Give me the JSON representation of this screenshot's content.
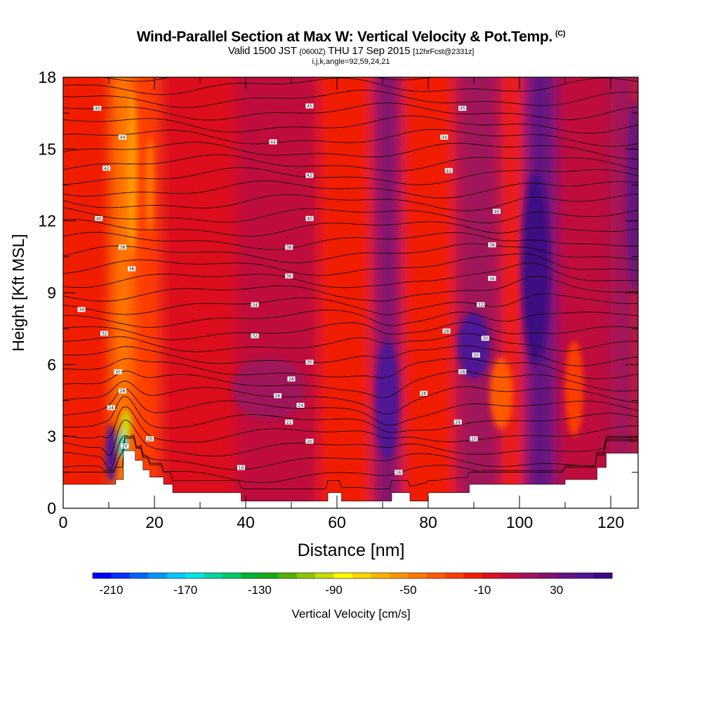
{
  "title": {
    "main": "Wind-Parallel Section at Max W: Vertical Velocity & Pot.Temp.",
    "copyright": "(C)",
    "valid_prefix": "Valid 1500 JST",
    "valid_utc": "(0600Z)",
    "valid_date": "THU 17 Sep 2015",
    "forecast": "[12hrFcst@2331z]",
    "indices": "i,j,k,angle=92,59,24,21"
  },
  "chart_data": {
    "type": "heatmap",
    "xlabel": "Distance [nm]",
    "ylabel": "Height [Kft MSL]",
    "xlim": [
      0,
      126
    ],
    "ylim": [
      0,
      18
    ],
    "x_ticks": [
      0,
      20,
      40,
      60,
      80,
      100,
      120
    ],
    "y_ticks": [
      0,
      3,
      6,
      9,
      12,
      15,
      18
    ],
    "colorbar": {
      "label": "Vertical Velocity [cm/s]",
      "min": -220,
      "max": 60,
      "step": 10,
      "tick_labels": [
        "-210",
        "-170",
        "-130",
        "-90",
        "-50",
        "-10",
        "30"
      ],
      "tick_values": [
        -210,
        -170,
        -130,
        -90,
        -50,
        -10,
        30
      ],
      "colors": [
        "#0000ff",
        "#0032ff",
        "#0064ff",
        "#0096ff",
        "#00c8ff",
        "#00e6e6",
        "#00d7a0",
        "#00c864",
        "#00b432",
        "#14aa14",
        "#50b400",
        "#8cc800",
        "#c8dc00",
        "#ffff00",
        "#ffd700",
        "#ffb400",
        "#ff9600",
        "#ff7800",
        "#ff5a00",
        "#ff3c00",
        "#f01e00",
        "#dc0f1e",
        "#be0f3c",
        "#a0145a",
        "#82146e",
        "#641482",
        "#501496",
        "#3c0a82"
      ]
    },
    "velocity_bands": [
      {
        "x": 0,
        "w": 11,
        "v": -15
      },
      {
        "x": 11,
        "w": 4,
        "v": -50
      },
      {
        "x": 15,
        "w": 6,
        "v": -25
      },
      {
        "x": 21,
        "w": 17,
        "v": -10
      },
      {
        "x": 38,
        "w": 18,
        "v": 0
      },
      {
        "x": 56,
        "w": 12,
        "v": -12
      },
      {
        "x": 68,
        "w": 6,
        "v": 20
      },
      {
        "x": 74,
        "w": 12,
        "v": -15
      },
      {
        "x": 86,
        "w": 10,
        "v": 15
      },
      {
        "x": 96,
        "w": 5,
        "v": -20
      },
      {
        "x": 101,
        "w": 7,
        "v": 35
      },
      {
        "x": 108,
        "w": 12,
        "v": 0
      },
      {
        "x": 120,
        "w": 6,
        "v": 10
      }
    ],
    "velocity_features": [
      {
        "x": 10.5,
        "y": 2.3,
        "rx": 1.3,
        "ry": 1.2,
        "v": 45
      },
      {
        "x": 13.2,
        "y": 2.8,
        "rx": 0.9,
        "ry": 0.7,
        "v": -170
      },
      {
        "x": 13.8,
        "y": 3.5,
        "rx": 1.0,
        "ry": 0.6,
        "v": -100
      },
      {
        "x": 15.0,
        "y": 14.0,
        "rx": 1.2,
        "ry": 3.5,
        "v": -60
      },
      {
        "x": 19.0,
        "y": 13.5,
        "rx": 0.9,
        "ry": 2.0,
        "v": -45
      },
      {
        "x": 45.0,
        "y": 5.0,
        "rx": 8.0,
        "ry": 1.3,
        "v": 10
      },
      {
        "x": 71.0,
        "y": 4.5,
        "rx": 2.5,
        "ry": 2.5,
        "v": 40
      },
      {
        "x": 90.0,
        "y": 6.8,
        "rx": 3.5,
        "ry": 1.4,
        "v": 40
      },
      {
        "x": 103.5,
        "y": 10.0,
        "rx": 3.0,
        "ry": 4.0,
        "v": 50
      },
      {
        "x": 96.0,
        "y": 4.8,
        "rx": 2.5,
        "ry": 1.5,
        "v": -40
      },
      {
        "x": 112.0,
        "y": 5.0,
        "rx": 2.0,
        "ry": 2.0,
        "v": -30
      },
      {
        "x": 125.0,
        "y": 13.0,
        "rx": 1.5,
        "ry": 4.0,
        "v": 30
      }
    ],
    "terrain": [
      [
        0,
        1.0
      ],
      [
        11.5,
        1.0
      ],
      [
        11.5,
        1.2
      ],
      [
        13.2,
        1.2
      ],
      [
        13.2,
        2.4
      ],
      [
        15.8,
        2.4
      ],
      [
        15.8,
        2.0
      ],
      [
        17.5,
        2.0
      ],
      [
        17.5,
        1.6
      ],
      [
        19,
        1.6
      ],
      [
        19,
        1.3
      ],
      [
        22,
        1.3
      ],
      [
        22,
        1.0
      ],
      [
        24,
        1.0
      ],
      [
        24,
        0.65
      ],
      [
        39,
        0.65
      ],
      [
        39,
        0.3
      ],
      [
        58,
        0.3
      ],
      [
        58,
        0.65
      ],
      [
        61,
        0.65
      ],
      [
        61,
        0.3
      ],
      [
        72,
        0.3
      ],
      [
        72,
        0.65
      ],
      [
        76,
        0.65
      ],
      [
        76,
        0.3
      ],
      [
        80,
        0.3
      ],
      [
        80,
        0.65
      ],
      [
        89,
        0.65
      ],
      [
        89,
        1.0
      ],
      [
        110,
        1.0
      ],
      [
        110,
        1.2
      ],
      [
        117,
        1.2
      ],
      [
        117,
        1.7
      ],
      [
        119,
        1.7
      ],
      [
        119,
        2.3
      ],
      [
        126,
        2.3
      ]
    ],
    "theta_contours": {
      "count": 33,
      "base": 290,
      "step": 1
    },
    "theta_labels": [
      {
        "x": 7.5,
        "y": 16.7,
        "t": "45"
      },
      {
        "x": 54,
        "y": 16.8,
        "t": "45"
      },
      {
        "x": 87.5,
        "y": 16.7,
        "t": "45"
      },
      {
        "x": 13,
        "y": 15.5,
        "t": "44"
      },
      {
        "x": 46,
        "y": 15.3,
        "t": "44"
      },
      {
        "x": 83.5,
        "y": 15.5,
        "t": "44"
      },
      {
        "x": 9.5,
        "y": 14.2,
        "t": "42"
      },
      {
        "x": 54,
        "y": 13.9,
        "t": "42"
      },
      {
        "x": 84.5,
        "y": 14.1,
        "t": "42"
      },
      {
        "x": 7.8,
        "y": 12.1,
        "t": "40"
      },
      {
        "x": 54,
        "y": 12.1,
        "t": "40"
      },
      {
        "x": 95,
        "y": 12.4,
        "t": "40"
      },
      {
        "x": 13,
        "y": 10.9,
        "t": "38"
      },
      {
        "x": 49.5,
        "y": 10.9,
        "t": "38"
      },
      {
        "x": 94,
        "y": 11.0,
        "t": "38"
      },
      {
        "x": 15,
        "y": 10.0,
        "t": "36"
      },
      {
        "x": 49.5,
        "y": 9.7,
        "t": "36"
      },
      {
        "x": 94,
        "y": 9.6,
        "t": "36"
      },
      {
        "x": 4,
        "y": 8.3,
        "t": "34"
      },
      {
        "x": 42,
        "y": 8.5,
        "t": "34"
      },
      {
        "x": 91.5,
        "y": 8.5,
        "t": "32"
      },
      {
        "x": 9,
        "y": 7.3,
        "t": "32"
      },
      {
        "x": 42,
        "y": 7.2,
        "t": "32"
      },
      {
        "x": 84,
        "y": 7.4,
        "t": "28"
      },
      {
        "x": 92.5,
        "y": 7.1,
        "t": "30"
      },
      {
        "x": 90.5,
        "y": 6.4,
        "t": "30"
      },
      {
        "x": 54,
        "y": 6.1,
        "t": "30"
      },
      {
        "x": 12,
        "y": 5.7,
        "t": "30"
      },
      {
        "x": 87.5,
        "y": 5.7,
        "t": "28"
      },
      {
        "x": 50,
        "y": 5.4,
        "t": "28"
      },
      {
        "x": 13,
        "y": 4.9,
        "t": "28"
      },
      {
        "x": 47,
        "y": 4.7,
        "t": "26"
      },
      {
        "x": 79,
        "y": 4.8,
        "t": "26"
      },
      {
        "x": 52,
        "y": 4.3,
        "t": "24"
      },
      {
        "x": 10.5,
        "y": 4.2,
        "t": "24"
      },
      {
        "x": 49.5,
        "y": 3.6,
        "t": "22"
      },
      {
        "x": 86.5,
        "y": 3.6,
        "t": "24"
      },
      {
        "x": 19,
        "y": 2.9,
        "t": "20"
      },
      {
        "x": 54,
        "y": 2.8,
        "t": "20"
      },
      {
        "x": 90,
        "y": 2.9,
        "t": "20"
      },
      {
        "x": 13.5,
        "y": 2.6,
        "t": "20"
      },
      {
        "x": 39,
        "y": 1.7,
        "t": "16"
      },
      {
        "x": 73.5,
        "y": 1.5,
        "t": "16"
      }
    ]
  }
}
